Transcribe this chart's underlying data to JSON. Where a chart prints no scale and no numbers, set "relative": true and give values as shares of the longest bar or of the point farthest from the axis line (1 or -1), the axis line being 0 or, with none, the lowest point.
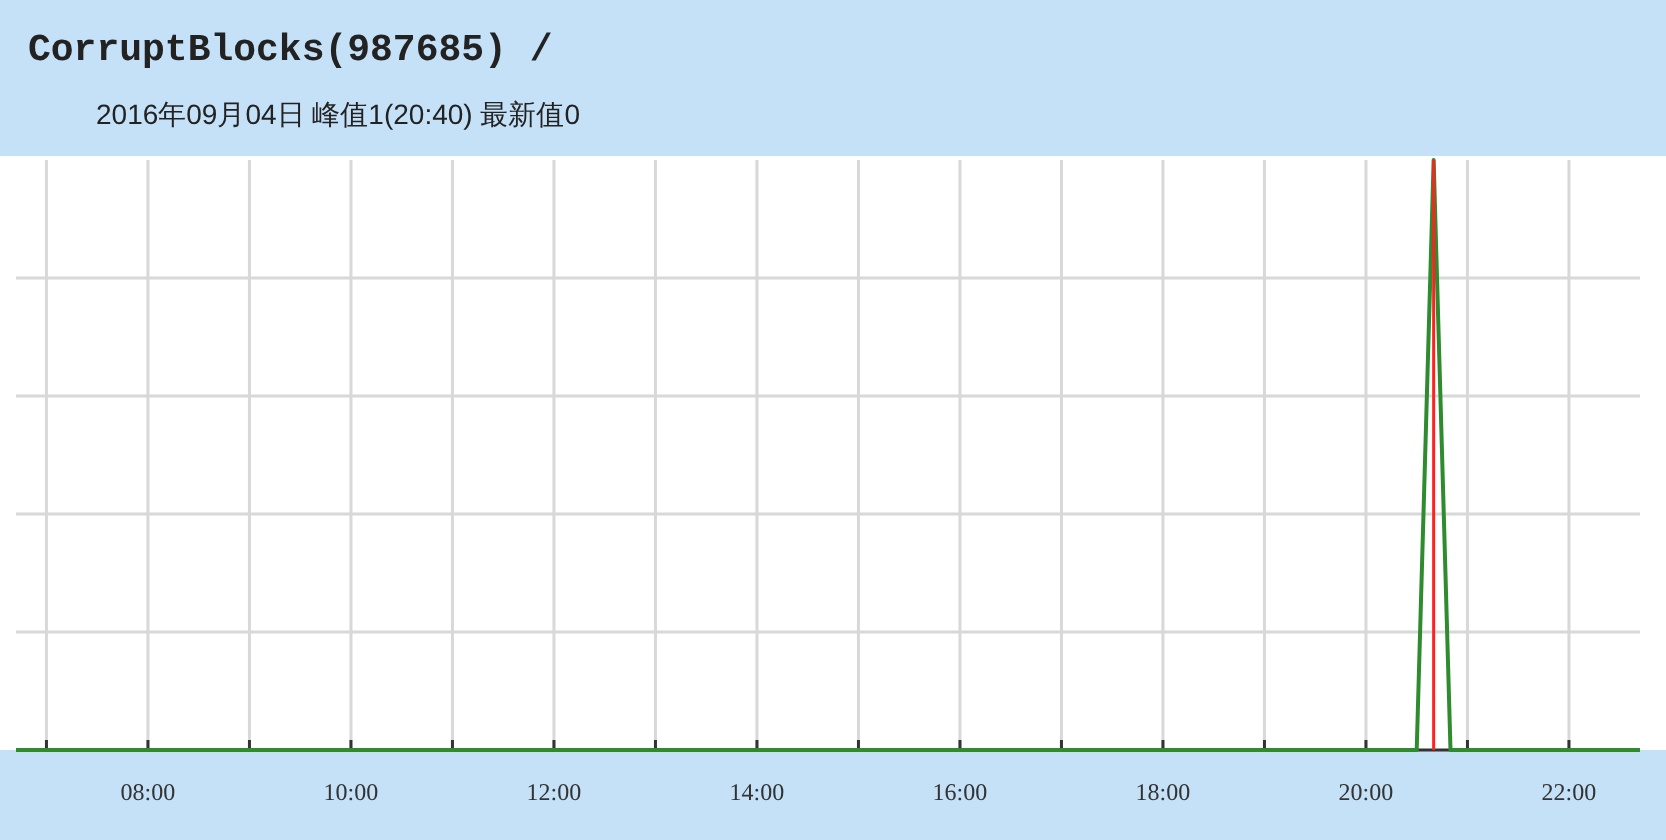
{
  "chart_data": {
    "type": "line",
    "title": "CorruptBlocks(987685) /",
    "subtitle": "2016年09月04日 峰值1(20:40) 最新值0",
    "relative": true,
    "series": [
      {
        "color": "#2e8b2e",
        "x": [
          6.7,
          20.5,
          20.667,
          20.833,
          22.7
        ],
        "values": [
          0,
          0,
          1,
          0,
          0
        ]
      }
    ],
    "xlim": [
      6.7,
      22.7
    ],
    "xticks": [
      {
        "value": 7,
        "label": null
      },
      {
        "value": 8,
        "label": "08:00"
      },
      {
        "value": 9,
        "label": null
      },
      {
        "value": 10,
        "label": "10:00"
      },
      {
        "value": 11,
        "label": null
      },
      {
        "value": 12,
        "label": "12:00"
      },
      {
        "value": 13,
        "label": null
      },
      {
        "value": 14,
        "label": "14:00"
      },
      {
        "value": 15,
        "label": null
      },
      {
        "value": 16,
        "label": "16:00"
      },
      {
        "value": 17,
        "label": null
      },
      {
        "value": 18,
        "label": "18:00"
      },
      {
        "value": 19,
        "label": null
      },
      {
        "value": 20,
        "label": "20:00"
      },
      {
        "value": 21,
        "label": null
      },
      {
        "value": 22,
        "label": "22:00"
      }
    ],
    "ref_lines": [
      {
        "axis": "x",
        "value": 20.667,
        "color": "#ff2020"
      }
    ],
    "grid": true
  }
}
